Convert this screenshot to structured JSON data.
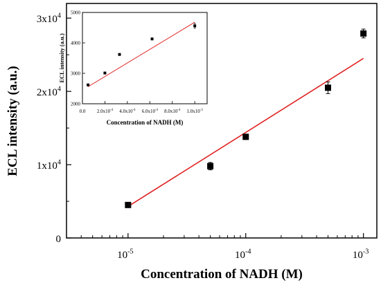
{
  "chart_data": [
    {
      "type": "scatter",
      "xlabel": "Concentration of NADH (M)",
      "ylabel": "ECL intensity (a.u.)",
      "xscale": "log",
      "xlim": [
        3e-06,
        0.0013
      ],
      "ylim": [
        0,
        32000
      ],
      "x_tick_labels": [
        {
          "base": "10",
          "exp": "-5"
        },
        {
          "base": "10",
          "exp": "-4"
        },
        {
          "base": "10",
          "exp": "-3"
        }
      ],
      "x_tick_values": [
        1e-05,
        0.0001,
        0.001
      ],
      "y_tick_values": [
        0,
        10000,
        20000,
        30000
      ],
      "y_tick_labels": [
        {
          "base": "0",
          "exp": ""
        },
        {
          "base": "1x10",
          "exp": "4"
        },
        {
          "base": "2x10",
          "exp": "4"
        },
        {
          "base": "3x10",
          "exp": "4"
        }
      ],
      "grid": false,
      "series": [
        {
          "marker": "square",
          "color": "#000000",
          "x": [
            1e-05,
            5e-05,
            0.0001,
            0.0005,
            0.001
          ],
          "y": [
            4500,
            9800,
            13800,
            20500,
            27900
          ],
          "yerr": [
            250,
            500,
            300,
            800,
            600
          ]
        }
      ],
      "fit_line": {
        "color": "#e02020",
        "x": [
          1e-05,
          0.001
        ],
        "y": [
          4300,
          24500
        ]
      }
    },
    {
      "type": "scatter",
      "inset": true,
      "xlabel": "Concentration of NADH (M)",
      "ylabel": "ECL intensity (a.u.)",
      "xlim": [
        0,
        0.00111
      ],
      "ylim": [
        2000,
        5000
      ],
      "x_tick_values": [
        0,
        0.0002,
        0.0004,
        0.0006,
        0.0008,
        0.001
      ],
      "x_tick_labels": [
        {
          "base": "0.0",
          "exp": ""
        },
        {
          "base": "2.0x10",
          "exp": "-4"
        },
        {
          "base": "4.0x10",
          "exp": "-4"
        },
        {
          "base": "6.0x10",
          "exp": "-4"
        },
        {
          "base": "8.0x10",
          "exp": "-4"
        },
        {
          "base": "1.0x10",
          "exp": "-3"
        }
      ],
      "y_tick_values": [
        2000,
        3000,
        4000,
        5000
      ],
      "y_tick_labels": [
        "2000",
        "3000",
        "4000",
        "5000"
      ],
      "series": [
        {
          "marker": "square",
          "color": "#000000",
          "x": [
            5e-05,
            0.0002,
            0.00033,
            0.00062,
            0.001
          ],
          "y": [
            2620,
            3010,
            3620,
            4130,
            4560
          ],
          "yerr": [
            20,
            20,
            30,
            30,
            80
          ]
        }
      ],
      "fit_line": {
        "color": "#e02020",
        "x": [
          5e-05,
          0.001
        ],
        "y": [
          2560,
          4680
        ]
      }
    }
  ]
}
